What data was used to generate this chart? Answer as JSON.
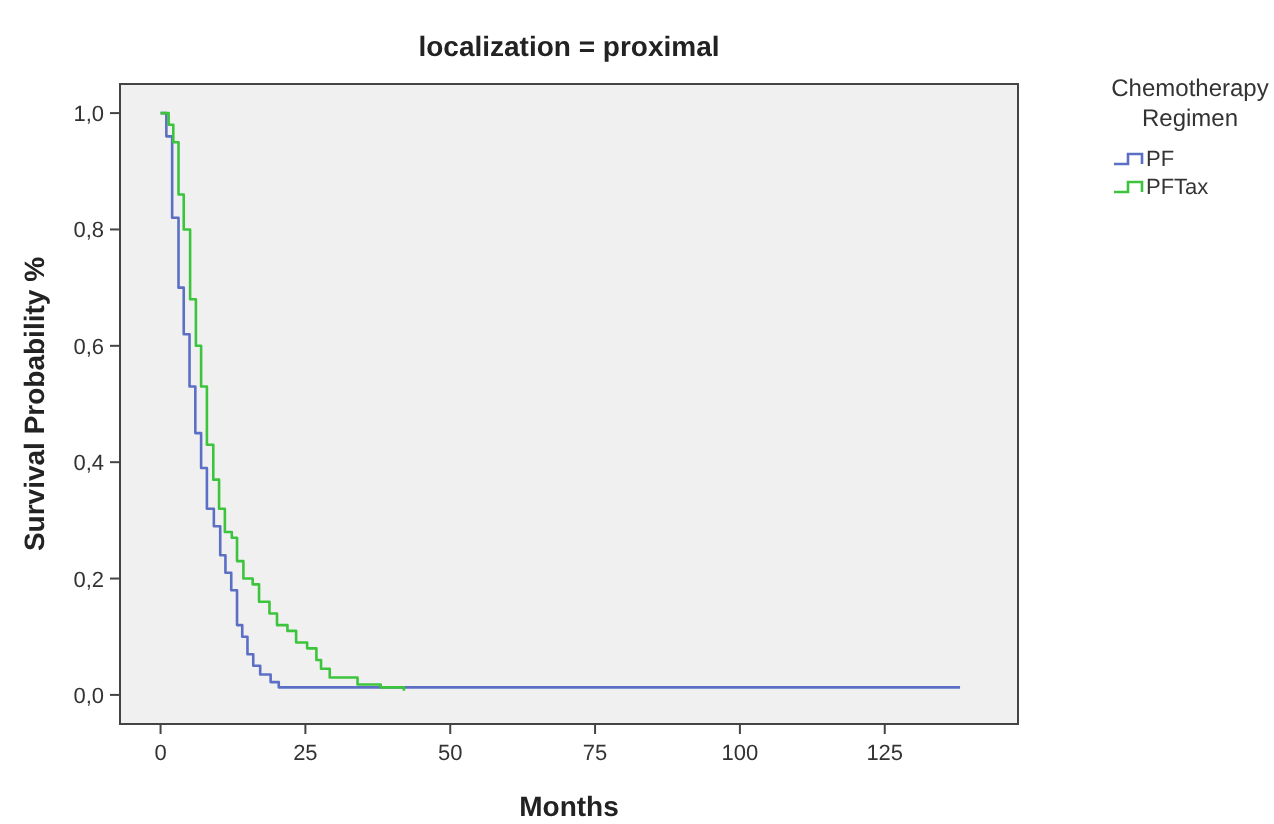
{
  "chart_data": {
    "type": "step",
    "title": "localization = proximal",
    "xlabel": "Months",
    "ylabel": "Survival Probability %",
    "legend_title": "Chemotherapy Regimen",
    "legend": "right",
    "xlim": [
      -7,
      148
    ],
    "ylim": [
      -0.05,
      1.05
    ],
    "xticks": [
      0,
      25,
      50,
      75,
      100,
      125
    ],
    "yticks": [
      {
        "value": 0,
        "label": "0,0"
      },
      {
        "value": 0.2,
        "label": "0,2"
      },
      {
        "value": 0.4,
        "label": "0,4"
      },
      {
        "value": 0.6,
        "label": "0,6"
      },
      {
        "value": 0.8,
        "label": "0,8"
      },
      {
        "value": 1,
        "label": "1,0"
      }
    ],
    "grid": false,
    "series": [
      {
        "name": "PF",
        "color": "#5b6fc4",
        "x": [
          0,
          1,
          2,
          3.1,
          4,
          5,
          6,
          7,
          8,
          9.2,
          10.3,
          11.2,
          12.2,
          13.2,
          14.1,
          15,
          16,
          17.2,
          19,
          20.4,
          138
        ],
        "values": [
          1,
          0.96,
          0.82,
          0.7,
          0.62,
          0.53,
          0.45,
          0.39,
          0.32,
          0.29,
          0.24,
          0.21,
          0.18,
          0.12,
          0.1,
          0.07,
          0.05,
          0.035,
          0.022,
          0.013,
          0.013
        ]
      },
      {
        "name": "PFTax",
        "color": "#3cc43c",
        "x": [
          0,
          1.4,
          2.2,
          3.1,
          4,
          5.1,
          6.1,
          7,
          8,
          9.1,
          10.1,
          11.1,
          12.3,
          13.2,
          14.3,
          15.9,
          17,
          18.8,
          20.1,
          21.9,
          23.4,
          25.3,
          26.9,
          27.7,
          29.2,
          34,
          38,
          42
        ],
        "values": [
          1,
          0.98,
          0.95,
          0.86,
          0.8,
          0.68,
          0.6,
          0.53,
          0.43,
          0.37,
          0.32,
          0.28,
          0.27,
          0.23,
          0.2,
          0.19,
          0.16,
          0.14,
          0.12,
          0.11,
          0.09,
          0.08,
          0.06,
          0.045,
          0.03,
          0.018,
          0.013,
          0.007
        ]
      }
    ]
  }
}
